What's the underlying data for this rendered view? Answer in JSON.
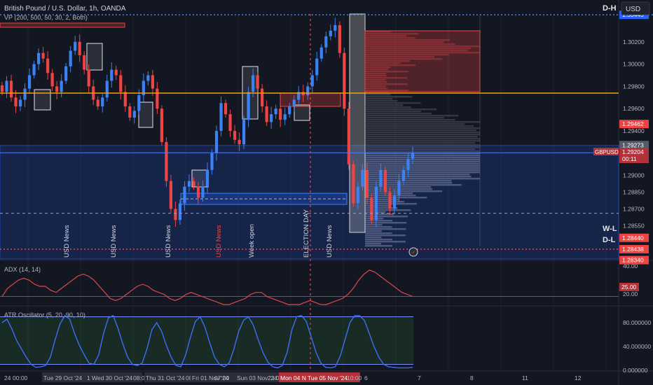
{
  "header": {
    "title": "British Pound / U.S. Dollar, 1h, OANDA",
    "vp_label": "VP (200, 500, 50, 30, 2, Both)",
    "corner_tag": "D-H",
    "currency_button": "USD"
  },
  "colors": {
    "bg": "#131722",
    "up": "#3b82f6",
    "down": "#ef4444",
    "grid": "#1e2230",
    "orange": "#f59e0b",
    "red_dotted": "#ef4444",
    "blue_dotted": "#3b82f6",
    "zone_blue": "#2962ff",
    "adx_line": "#e0474c",
    "atr_line": "#3d6ef5"
  },
  "chart_data": [
    {
      "type": "candlestick",
      "title": "British Pound / U.S. Dollar, 1h, OANDA",
      "ylim": [
        1.2825,
        1.3045
      ],
      "y_ticks": [
        "1.30200",
        "1.30000",
        "1.29800",
        "1.29600",
        "1.29400",
        "1.29000",
        "1.28850",
        "1.28700",
        "1.28550"
      ],
      "price_tags": [
        {
          "text": "1.30443",
          "color": "#2962ff",
          "y": 1.30443
        },
        {
          "text": "1.29462",
          "color": "#ef4444",
          "y": 1.29462
        },
        {
          "text": "1.29273",
          "color": "#555b6b",
          "y": 1.29273
        },
        {
          "text": "1.28440",
          "color": "#ef4444",
          "y": 1.2844
        },
        {
          "text": "1.28438",
          "color": "#ef4444",
          "y": 1.28338
        },
        {
          "text": "1.28340",
          "color": "#ef4444",
          "y": 1.2824
        }
      ],
      "current": {
        "symbol": "GBPUSD",
        "price": "1.29204",
        "countdown": "00:11",
        "value": 1.29204
      },
      "level_labels": [
        "W-L",
        "D-L"
      ],
      "news_labels": [
        {
          "text": "USD News",
          "color": "#d1d4dc"
        },
        {
          "text": "USD News",
          "color": "#d1d4dc"
        },
        {
          "text": "USD News",
          "color": "#d1d4dc"
        },
        {
          "text": "USD News",
          "color": "#ef4444"
        },
        {
          "text": "Week open",
          "color": "#d1d4dc"
        },
        {
          "text": "ELECTION DAY",
          "color": "#d1d4dc"
        },
        {
          "text": "USD News",
          "color": "#d1d4dc"
        }
      ],
      "closes": [
        1.2975,
        1.2985,
        1.297,
        1.2962,
        1.2968,
        1.2978,
        1.299,
        1.3,
        1.301,
        1.3005,
        1.2992,
        1.298,
        1.2975,
        1.2985,
        1.2998,
        1.3012,
        1.302,
        1.3008,
        1.2995,
        1.298,
        1.2968,
        1.2962,
        1.297,
        1.2985,
        1.2995,
        1.299,
        1.2975,
        1.2962,
        1.2952,
        1.2958,
        1.2972,
        1.2985,
        1.299,
        1.2978,
        1.296,
        1.293,
        1.2895,
        1.287,
        1.286,
        1.2875,
        1.289,
        1.2895,
        1.289,
        1.288,
        1.289,
        1.2905,
        1.292,
        1.294,
        1.2965,
        1.2955,
        1.294,
        1.2932,
        1.2928,
        1.295,
        1.2975,
        1.299,
        1.2978,
        1.2962,
        1.2948,
        1.2955,
        1.296,
        1.295,
        1.2955,
        1.2962,
        1.2968,
        1.2975,
        1.2972,
        1.298,
        1.299,
        1.3005,
        1.3015,
        1.3025,
        1.303,
        1.3035,
        1.301,
        1.296,
        1.291,
        1.2875,
        1.289,
        1.2905,
        1.288,
        1.286,
        1.289,
        1.2905,
        1.2885,
        1.287,
        1.2882,
        1.2895,
        1.2905,
        1.2915,
        1.292
      ]
    },
    {
      "type": "line",
      "title": "ADX (14, 14)",
      "ylim": [
        20,
        40
      ],
      "y_ticks": [
        "40.00",
        "20.00"
      ],
      "current_label": "25.00",
      "values": [
        25,
        29,
        31,
        33,
        34,
        33,
        31,
        30,
        30,
        28,
        27,
        29,
        31,
        33,
        35,
        36,
        35,
        33,
        30,
        27,
        24,
        23,
        24,
        26,
        28,
        30,
        31,
        30,
        28,
        27,
        26,
        24,
        23,
        24,
        26,
        27,
        26,
        25,
        24,
        23,
        22,
        21,
        21,
        22,
        23,
        24,
        26,
        27,
        27,
        25,
        24,
        23,
        22,
        21,
        21,
        21,
        22,
        23,
        22,
        21,
        21,
        22,
        23,
        24,
        26,
        29,
        33,
        36,
        38,
        37,
        35,
        33,
        31,
        29,
        27,
        26,
        25
      ]
    },
    {
      "type": "line",
      "title": "ATR Oscillator (5, 20, 90, 10)",
      "ylim": [
        0,
        100
      ],
      "y_ticks": [
        "80.000000",
        "40.000000",
        "0.000000"
      ],
      "levels": [
        90,
        10
      ],
      "values": [
        80,
        86,
        70,
        50,
        36,
        22,
        10,
        5,
        6,
        8,
        22,
        52,
        78,
        92,
        86,
        62,
        42,
        26,
        12,
        10,
        26,
        62,
        88,
        92,
        70,
        44,
        22,
        10,
        8,
        12,
        36,
        68,
        80,
        66,
        42,
        22,
        8,
        6,
        26,
        56,
        82,
        90,
        72,
        46,
        22,
        10,
        6,
        12,
        36,
        66,
        84,
        90,
        76,
        52,
        30,
        14,
        6,
        4,
        8,
        30,
        68,
        90,
        92,
        82,
        56,
        30,
        12,
        5,
        4,
        6,
        24,
        52,
        80,
        92,
        92,
        84,
        62,
        40,
        22,
        10,
        6,
        5,
        4,
        4,
        4,
        5
      ]
    }
  ],
  "x_axis": {
    "labels": [
      "24",
      "00:00",
      "Tue 29 Oct '24",
      "10:00",
      "Wed 30 Oct '24",
      "08:00",
      "Thu 31 Oct '24",
      "08:00",
      "Fri 01 Nov '24",
      "07:00",
      "Sun 03 Nov '24",
      "23:00",
      "Mon 04 Nov '24",
      "Tue 05 Nov '24",
      "10:00",
      "6",
      "7",
      "8",
      "11",
      "12"
    ],
    "highlighted": [
      "Mon 04 Nov '24",
      "Tue 05 Nov '24"
    ]
  }
}
